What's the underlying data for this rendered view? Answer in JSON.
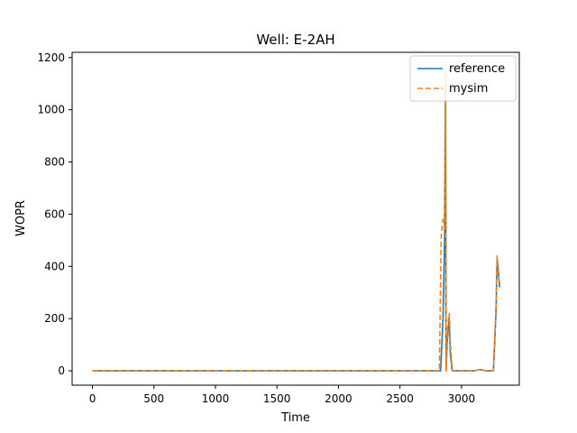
{
  "chart_data": {
    "type": "line",
    "title": "Well: E-2AH",
    "xlabel": "Time",
    "ylabel": "WOPR",
    "xlim": [
      -165,
      3470
    ],
    "ylim": [
      -55,
      1220
    ],
    "x_ticks": [
      0,
      500,
      1000,
      1500,
      2000,
      2500,
      3000
    ],
    "y_ticks": [
      0,
      200,
      400,
      600,
      800,
      1000,
      1200
    ],
    "grid": false,
    "legend_position": "top-right",
    "series": [
      {
        "name": "reference",
        "color": "#1f77b4",
        "style": "solid",
        "x": [
          0,
          500,
          1000,
          1500,
          2000,
          2500,
          2830,
          2850,
          2865,
          2870,
          2875,
          2885,
          2900,
          2910,
          2925,
          2950,
          3000,
          3100,
          3150,
          3200,
          3260,
          3280,
          3290,
          3310
        ],
        "y": [
          0,
          0,
          0,
          0,
          0,
          0,
          0,
          200,
          550,
          1100,
          0,
          120,
          200,
          60,
          0,
          0,
          0,
          0,
          5,
          0,
          0,
          220,
          430,
          320
        ]
      },
      {
        "name": "mysim",
        "color": "#ff7f0e",
        "style": "dashed",
        "x": [
          0,
          500,
          1000,
          1500,
          2000,
          2500,
          2820,
          2835,
          2850,
          2860,
          2870,
          2875,
          2885,
          2900,
          2910,
          2925,
          2950,
          3000,
          3100,
          3150,
          3200,
          3260,
          3280,
          3290,
          3310
        ],
        "y": [
          0,
          0,
          0,
          0,
          0,
          0,
          0,
          520,
          580,
          560,
          1150,
          0,
          150,
          220,
          100,
          0,
          0,
          0,
          0,
          5,
          0,
          0,
          240,
          440,
          330
        ]
      }
    ]
  }
}
